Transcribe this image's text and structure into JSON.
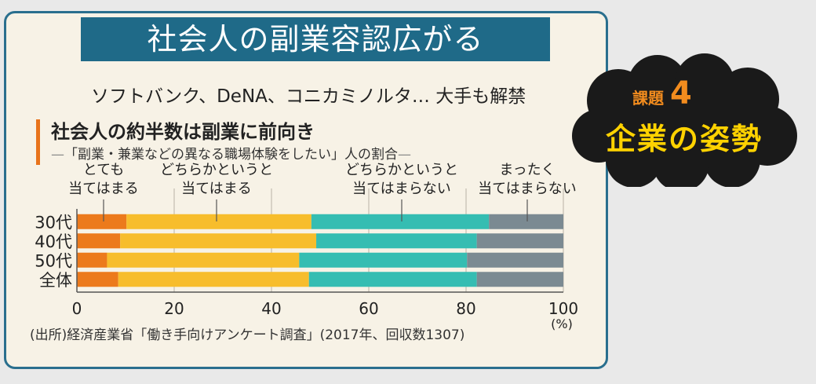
{
  "header": {
    "title": "社会人の副業容認広がる",
    "subtitle": "ソフトバンク、DeNA、コニカミノルタ… 大手も解禁"
  },
  "badge": {
    "label": "課題",
    "number": "4",
    "text": "企業の姿勢"
  },
  "colors": {
    "frame": "#2a6f8e",
    "title_bg": "#1f6a88",
    "accent": "#e8731b"
  },
  "chart_data": {
    "type": "bar",
    "orientation": "horizontal",
    "stacked": true,
    "title": "社会人の約半数は副業に前向き",
    "subtitle": "「副業・兼業などの異なる職場体験をしたい」人の割合",
    "categories": [
      "30代",
      "40代",
      "50代",
      "全体"
    ],
    "series": [
      {
        "name": "とても\n当てはまる",
        "color": "#ec7a1c",
        "values": [
          10.2,
          8.9,
          6.2,
          8.5
        ]
      },
      {
        "name": "どちらかというと\n当てはまる",
        "color": "#f7bd2c",
        "values": [
          38.0,
          40.3,
          39.5,
          39.2
        ]
      },
      {
        "name": "どちらかというと\n当てはまらない",
        "color": "#35bdb2",
        "values": [
          36.5,
          33.0,
          34.5,
          34.5
        ]
      },
      {
        "name": "まったく\n当てはまらない",
        "color": "#7b8a92",
        "values": [
          15.3,
          17.8,
          19.8,
          17.8
        ]
      }
    ],
    "xlim": [
      0,
      100
    ],
    "xticks": [
      "0",
      "20",
      "40",
      "60",
      "80",
      "100"
    ],
    "unit": "(%)",
    "grid": true,
    "legend": "top",
    "source": "(出所)経済産業省「働き手向けアンケート調査」(2017年、回収数1307)"
  }
}
